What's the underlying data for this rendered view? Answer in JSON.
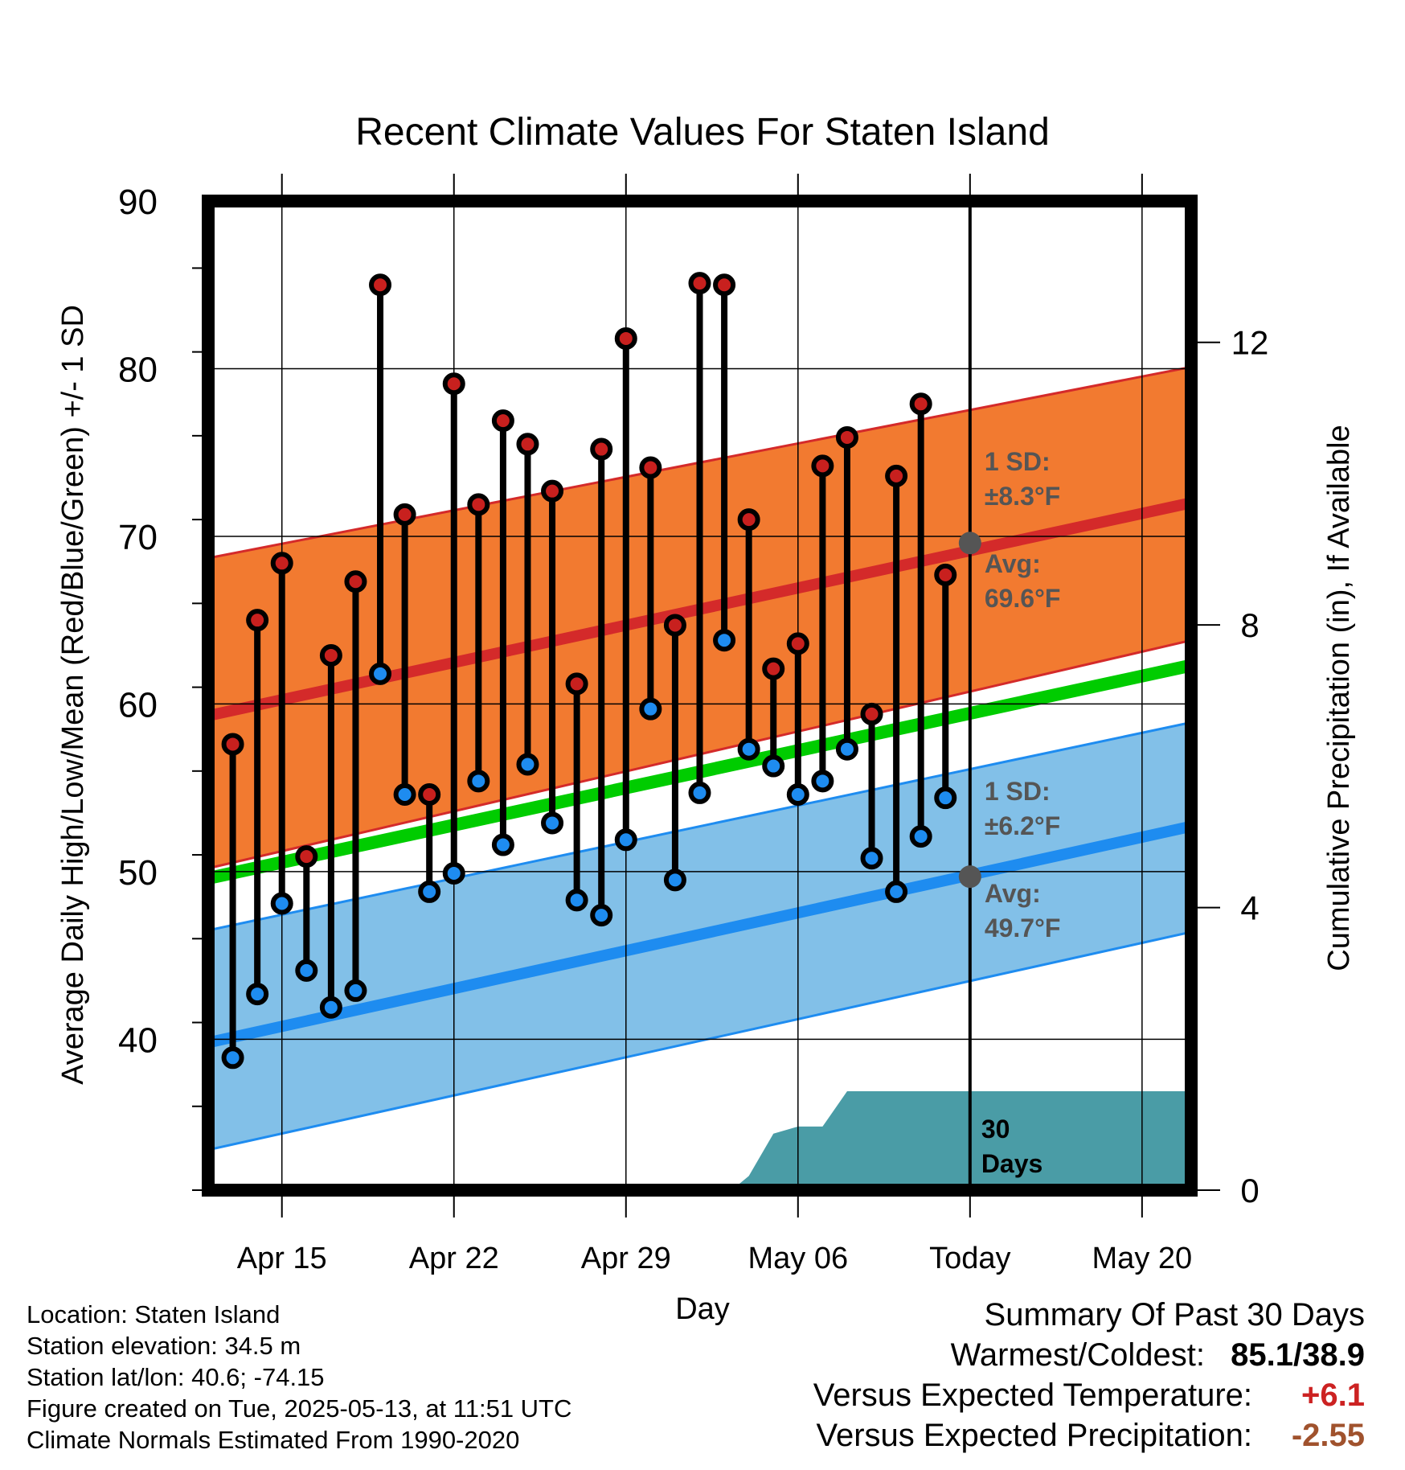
{
  "chart_data": {
    "type": "line",
    "title": "Recent Climate Values For Staten Island",
    "xlabel": "Day",
    "ylabel_left": "Average Daily High/Low/Mean (Red/Blue/Green) +/- 1 SD",
    "ylabel_right": "Cumulative Precipitation (in), If Available",
    "x_tick_labels": [
      "Apr 15",
      "Apr 22",
      "Apr 29",
      "May 06",
      "Today",
      "May 20"
    ],
    "x_tick_days": [
      15,
      22,
      29,
      36,
      43,
      50
    ],
    "x_range_days": [
      12,
      52
    ],
    "today_day": 43,
    "ylim_left": [
      31,
      90
    ],
    "yticks_left": [
      "40",
      "50",
      "60",
      "70",
      "80",
      "90"
    ],
    "ylim_right": [
      0,
      14
    ],
    "yticks_right": [
      "0",
      "4",
      "8",
      "12"
    ],
    "grid": true,
    "colors": {
      "high_band": "#f27a30",
      "high_line": "#d42a2a",
      "low_band": "#82c0e8",
      "low_line": "#1e8cf0",
      "mean_line": "#00cc00",
      "precip": "#4a9ca6",
      "high_dot": "#c8201e",
      "low_dot": "#1e8cf0",
      "annot_text": "#555555"
    },
    "normals": {
      "high_avg": {
        "start": 59.3,
        "end": 72.0
      },
      "high_sd_upper": {
        "start": 68.7,
        "end": 80.1
      },
      "high_sd_lower": {
        "start": 50.2,
        "end": 63.8
      },
      "low_avg": {
        "start": 39.8,
        "end": 52.7
      },
      "low_sd_upper": {
        "start": 46.5,
        "end": 58.9
      },
      "low_sd_lower": {
        "start": 33.4,
        "end": 46.4
      },
      "mean_avg": {
        "start": 49.6,
        "end": 62.3
      }
    },
    "annotations": {
      "high_sd_label": "1 SD:",
      "high_sd_value": "±8.3°F",
      "high_avg_label": "Avg:",
      "high_avg_value": "69.6°F",
      "high_avg_today": 69.6,
      "low_sd_label": "1 SD:",
      "low_sd_value": "±6.2°F",
      "low_avg_label": "Avg:",
      "low_avg_value": "49.7°F",
      "low_avg_today": 49.7,
      "precip_label_1": "30",
      "precip_label_2": "Days"
    },
    "series": [
      {
        "name": "High",
        "values": [
          57.6,
          65.0,
          68.4,
          50.9,
          62.9,
          67.3,
          85.0,
          71.3,
          54.6,
          79.1,
          71.9,
          76.9,
          75.5,
          72.7,
          61.2,
          75.2,
          81.8,
          74.1,
          64.7,
          85.1,
          85.0,
          71.0,
          62.1,
          63.6,
          74.2,
          75.9,
          59.4,
          73.6,
          77.9,
          67.7
        ]
      },
      {
        "name": "Low",
        "values": [
          38.9,
          42.7,
          48.1,
          44.1,
          41.9,
          42.9,
          61.8,
          54.6,
          48.8,
          49.9,
          55.4,
          51.6,
          56.4,
          52.9,
          48.3,
          47.4,
          51.9,
          59.7,
          49.5,
          54.7,
          63.8,
          57.3,
          56.3,
          54.6,
          55.4,
          57.3,
          50.8,
          48.8,
          52.1,
          54.4
        ]
      }
    ],
    "days": [
      13,
      14,
      15,
      16,
      17,
      18,
      19,
      20,
      21,
      22,
      23,
      24,
      25,
      26,
      27,
      28,
      29,
      30,
      31,
      32,
      33,
      34,
      35,
      36,
      37,
      38,
      39,
      40,
      41,
      42
    ],
    "precip_cumulative": {
      "days": [
        12,
        33.3,
        34,
        35,
        36,
        37,
        38,
        39,
        43,
        52
      ],
      "values": [
        0,
        0,
        0.2,
        0.8,
        0.9,
        0.9,
        1.4,
        1.4,
        1.4,
        1.4
      ]
    }
  },
  "info": {
    "location": "Location: Staten Island",
    "elevation": "Station elevation: 34.5 m",
    "latlon": "Station lat/lon: 40.6; -74.15",
    "created": "Figure created on Tue, 2025-05-13, at 11:51 UTC",
    "normals": "Climate Normals Estimated From 1990-2020"
  },
  "summary": {
    "title": "Summary Of Past 30 Days",
    "warm_cold_label": "Warmest/Coldest:",
    "warm_cold_value": "85.1/38.9",
    "temp_label": "Versus Expected Temperature:",
    "temp_value": "+6.1",
    "temp_color": "#cc2222",
    "precip_label": "Versus Expected Precipitation:",
    "precip_value": "-2.55",
    "precip_color": "#a0522d"
  }
}
